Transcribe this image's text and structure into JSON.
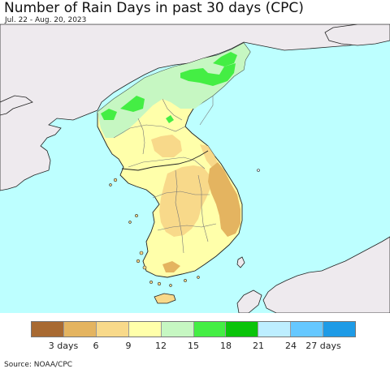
{
  "title": "Number of Rain Days in past 30 days (CPC)",
  "date_range": "Jul. 22 - Aug. 20, 2023",
  "source": "Source: NOAA/CPC",
  "legend": {
    "colors": [
      "#A86A32",
      "#E4B460",
      "#F8D98A",
      "#FFFFAA",
      "#C6F7C2",
      "#44EE44",
      "#0AC40A",
      "#BDEEFF",
      "#66C8FF",
      "#1E9BE6"
    ],
    "labels": [
      "3 days",
      "6",
      "9",
      "12",
      "15",
      "18",
      "21",
      "24",
      "27 days"
    ]
  },
  "map": {
    "sea_color": "#BDFFFF",
    "land_nodata_color": "#EEEAEE"
  }
}
